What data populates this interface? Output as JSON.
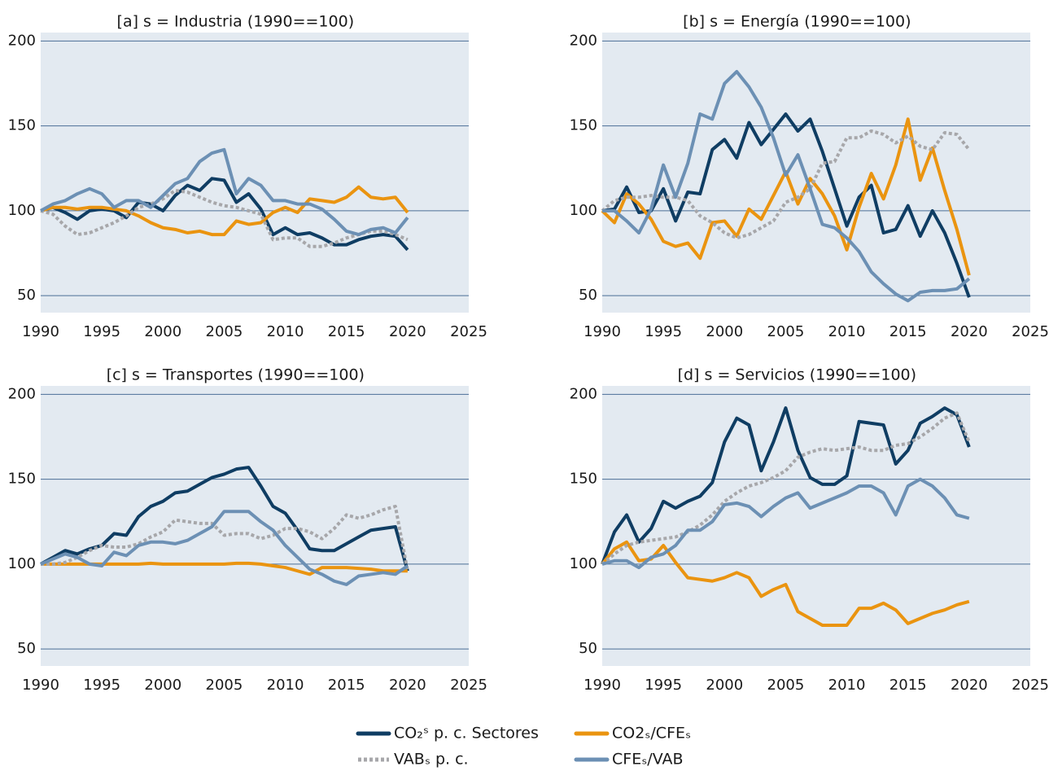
{
  "chart_data": [
    {
      "type": "line",
      "title": "[a] s = Industria (1990==100)",
      "x": [
        1990,
        1991,
        1992,
        1993,
        1994,
        1995,
        1996,
        1997,
        1998,
        1999,
        2000,
        2001,
        2002,
        2003,
        2004,
        2005,
        2006,
        2007,
        2008,
        2009,
        2010,
        2011,
        2012,
        2013,
        2014,
        2015,
        2016,
        2017,
        2018,
        2019,
        2020
      ],
      "xlim": [
        1990,
        2025
      ],
      "xticks": [
        1990,
        1995,
        2000,
        2005,
        2010,
        2015,
        2020,
        2025
      ],
      "ylim": [
        40,
        205
      ],
      "yticks": [
        50,
        100,
        150,
        200
      ],
      "grid": true,
      "legend": "bottom",
      "series": [
        {
          "name": "CO₂ˢ p. c. Sectores",
          "color": "#0f3d63",
          "style": "solid",
          "values": [
            100,
            102,
            99,
            95,
            100,
            101,
            100,
            96,
            105,
            104,
            100,
            109,
            115,
            112,
            119,
            118,
            105,
            110,
            101,
            86,
            90,
            86,
            87,
            84,
            80,
            80,
            83,
            85,
            86,
            85,
            77
          ]
        },
        {
          "name": "CO2ₛ/CFEₛ",
          "color": "#ea9410",
          "style": "solid",
          "values": [
            100,
            102,
            102,
            101,
            102,
            102,
            101,
            100,
            97,
            93,
            90,
            89,
            87,
            88,
            86,
            86,
            94,
            92,
            93,
            99,
            102,
            99,
            107,
            106,
            105,
            108,
            114,
            108,
            107,
            108,
            99
          ]
        },
        {
          "name": "VABₛ p. c.",
          "color": "#a7a7aa",
          "style": "dotted",
          "values": [
            100,
            98,
            91,
            86,
            87,
            90,
            93,
            97,
            102,
            104,
            107,
            112,
            111,
            108,
            105,
            103,
            102,
            100,
            98,
            83,
            84,
            84,
            79,
            79,
            81,
            84,
            86,
            88,
            88,
            86,
            83
          ]
        },
        {
          "name": "CFEₛ/VAB",
          "color": "#6c90b4",
          "style": "solid",
          "values": [
            100,
            104,
            106,
            110,
            113,
            110,
            102,
            106,
            106,
            102,
            109,
            116,
            119,
            129,
            134,
            136,
            110,
            119,
            115,
            106,
            106,
            104,
            104,
            101,
            95,
            88,
            86,
            89,
            90,
            87,
            96
          ]
        }
      ]
    },
    {
      "type": "line",
      "title": "[b] s = Energía (1990==100)",
      "x": [
        1990,
        1991,
        1992,
        1993,
        1994,
        1995,
        1996,
        1997,
        1998,
        1999,
        2000,
        2001,
        2002,
        2003,
        2004,
        2005,
        2006,
        2007,
        2008,
        2009,
        2010,
        2011,
        2012,
        2013,
        2014,
        2015,
        2016,
        2017,
        2018,
        2019,
        2020
      ],
      "xlim": [
        1990,
        2025
      ],
      "xticks": [
        1990,
        1995,
        2000,
        2005,
        2010,
        2015,
        2020,
        2025
      ],
      "ylim": [
        40,
        205
      ],
      "yticks": [
        50,
        100,
        150,
        200
      ],
      "grid": true,
      "series": [
        {
          "color": "#0f3d63",
          "style": "solid",
          "values": [
            100,
            101,
            114,
            99,
            100,
            113,
            94,
            111,
            110,
            136,
            142,
            131,
            152,
            139,
            148,
            157,
            147,
            154,
            135,
            113,
            91,
            108,
            115,
            87,
            89,
            103,
            85,
            100,
            87,
            69,
            49
          ]
        },
        {
          "color": "#ea9410",
          "style": "solid",
          "values": [
            100,
            93,
            110,
            104,
            95,
            82,
            79,
            81,
            72,
            93,
            94,
            85,
            101,
            95,
            109,
            123,
            104,
            119,
            110,
            97,
            77,
            102,
            122,
            107,
            127,
            154,
            118,
            137,
            112,
            89,
            62
          ]
        },
        {
          "color": "#a7a7aa",
          "style": "dotted",
          "values": [
            100,
            106,
            108,
            108,
            109,
            108,
            108,
            106,
            97,
            93,
            87,
            84,
            86,
            90,
            94,
            105,
            108,
            113,
            128,
            129,
            143,
            143,
            147,
            145,
            140,
            144,
            138,
            136,
            146,
            145,
            136
          ]
        },
        {
          "color": "#6c90b4",
          "style": "solid",
          "values": [
            100,
            100,
            94,
            87,
            101,
            127,
            108,
            128,
            157,
            154,
            175,
            182,
            173,
            161,
            143,
            121,
            133,
            113,
            92,
            90,
            84,
            76,
            64,
            57,
            51,
            47,
            52,
            53,
            53,
            54,
            60
          ]
        }
      ]
    },
    {
      "type": "line",
      "title": "[c] s = Transportes (1990==100)",
      "x": [
        1990,
        1991,
        1992,
        1993,
        1994,
        1995,
        1996,
        1997,
        1998,
        1999,
        2000,
        2001,
        2002,
        2003,
        2004,
        2005,
        2006,
        2007,
        2008,
        2009,
        2010,
        2011,
        2012,
        2013,
        2014,
        2015,
        2016,
        2017,
        2018,
        2019,
        2020
      ],
      "xlim": [
        1990,
        2025
      ],
      "xticks": [
        1990,
        1995,
        2000,
        2005,
        2010,
        2015,
        2020,
        2025
      ],
      "ylim": [
        40,
        205
      ],
      "yticks": [
        50,
        100,
        150,
        200
      ],
      "grid": true,
      "series": [
        {
          "color": "#0f3d63",
          "style": "solid",
          "values": [
            100,
            104,
            108,
            106,
            109,
            111,
            118,
            117,
            128,
            134,
            137,
            142,
            143,
            147,
            151,
            153,
            156,
            157,
            146,
            134,
            130,
            120,
            109,
            108,
            108,
            112,
            116,
            120,
            121,
            122,
            96
          ]
        },
        {
          "color": "#ea9410",
          "style": "solid",
          "values": [
            100,
            100,
            100,
            100,
            100,
            100,
            100,
            100,
            100,
            100.5,
            100,
            100,
            100,
            100,
            100,
            100,
            100.5,
            100.5,
            100,
            99,
            98,
            96,
            94,
            98,
            98,
            98,
            97.5,
            97,
            96,
            96,
            96
          ]
        },
        {
          "color": "#a7a7aa",
          "style": "dotted",
          "values": [
            100,
            100,
            101,
            104,
            108,
            111,
            110,
            110,
            112,
            116,
            119,
            126,
            125,
            124,
            124,
            117,
            118,
            118,
            115,
            117,
            121,
            121,
            119,
            115,
            121,
            129,
            127,
            129,
            132,
            134,
            96
          ]
        },
        {
          "color": "#6c90b4",
          "style": "solid",
          "values": [
            100,
            103,
            106,
            104,
            100,
            99,
            107,
            105,
            111,
            113,
            113,
            112,
            114,
            118,
            122,
            131,
            131,
            131,
            125,
            120,
            111,
            104,
            97,
            94,
            90,
            88,
            93,
            94,
            95,
            94,
            99
          ]
        }
      ]
    },
    {
      "type": "line",
      "title": "[d] s = Servicios (1990==100)",
      "x": [
        1990,
        1991,
        1992,
        1993,
        1994,
        1995,
        1996,
        1997,
        1998,
        1999,
        2000,
        2001,
        2002,
        2003,
        2004,
        2005,
        2006,
        2007,
        2008,
        2009,
        2010,
        2011,
        2012,
        2013,
        2014,
        2015,
        2016,
        2017,
        2018,
        2019,
        2020
      ],
      "xlim": [
        1990,
        2025
      ],
      "xticks": [
        1990,
        1995,
        2000,
        2005,
        2010,
        2015,
        2020,
        2025
      ],
      "ylim": [
        40,
        205
      ],
      "yticks": [
        50,
        100,
        150,
        200
      ],
      "grid": true,
      "series": [
        {
          "color": "#0f3d63",
          "style": "solid",
          "values": [
            100,
            119,
            129,
            113,
            121,
            137,
            133,
            137,
            140,
            148,
            172,
            186,
            182,
            155,
            172,
            192,
            167,
            151,
            147,
            147,
            152,
            184,
            183,
            182,
            159,
            167,
            183,
            187,
            192,
            188,
            169
          ]
        },
        {
          "color": "#ea9410",
          "style": "solid",
          "values": [
            100,
            109,
            113,
            102,
            103,
            111,
            101,
            92,
            91,
            90,
            92,
            95,
            92,
            81,
            85,
            88,
            72,
            68,
            64,
            64,
            64,
            74,
            74,
            77,
            73,
            65,
            68,
            71,
            73,
            76,
            78
          ]
        },
        {
          "color": "#a7a7aa",
          "style": "dotted",
          "values": [
            100,
            106,
            111,
            113,
            114,
            115,
            116,
            119,
            123,
            129,
            137,
            142,
            146,
            148,
            151,
            155,
            163,
            166,
            168,
            167,
            168,
            169,
            167,
            167,
            170,
            171,
            175,
            180,
            186,
            189,
            172
          ]
        },
        {
          "color": "#6c90b4",
          "style": "solid",
          "values": [
            100,
            102,
            102,
            98,
            104,
            106,
            111,
            120,
            120,
            125,
            135,
            136,
            134,
            128,
            134,
            139,
            142,
            133,
            136,
            139,
            142,
            146,
            146,
            142,
            129,
            146,
            150,
            146,
            139,
            129,
            127
          ]
        }
      ]
    }
  ]
}
